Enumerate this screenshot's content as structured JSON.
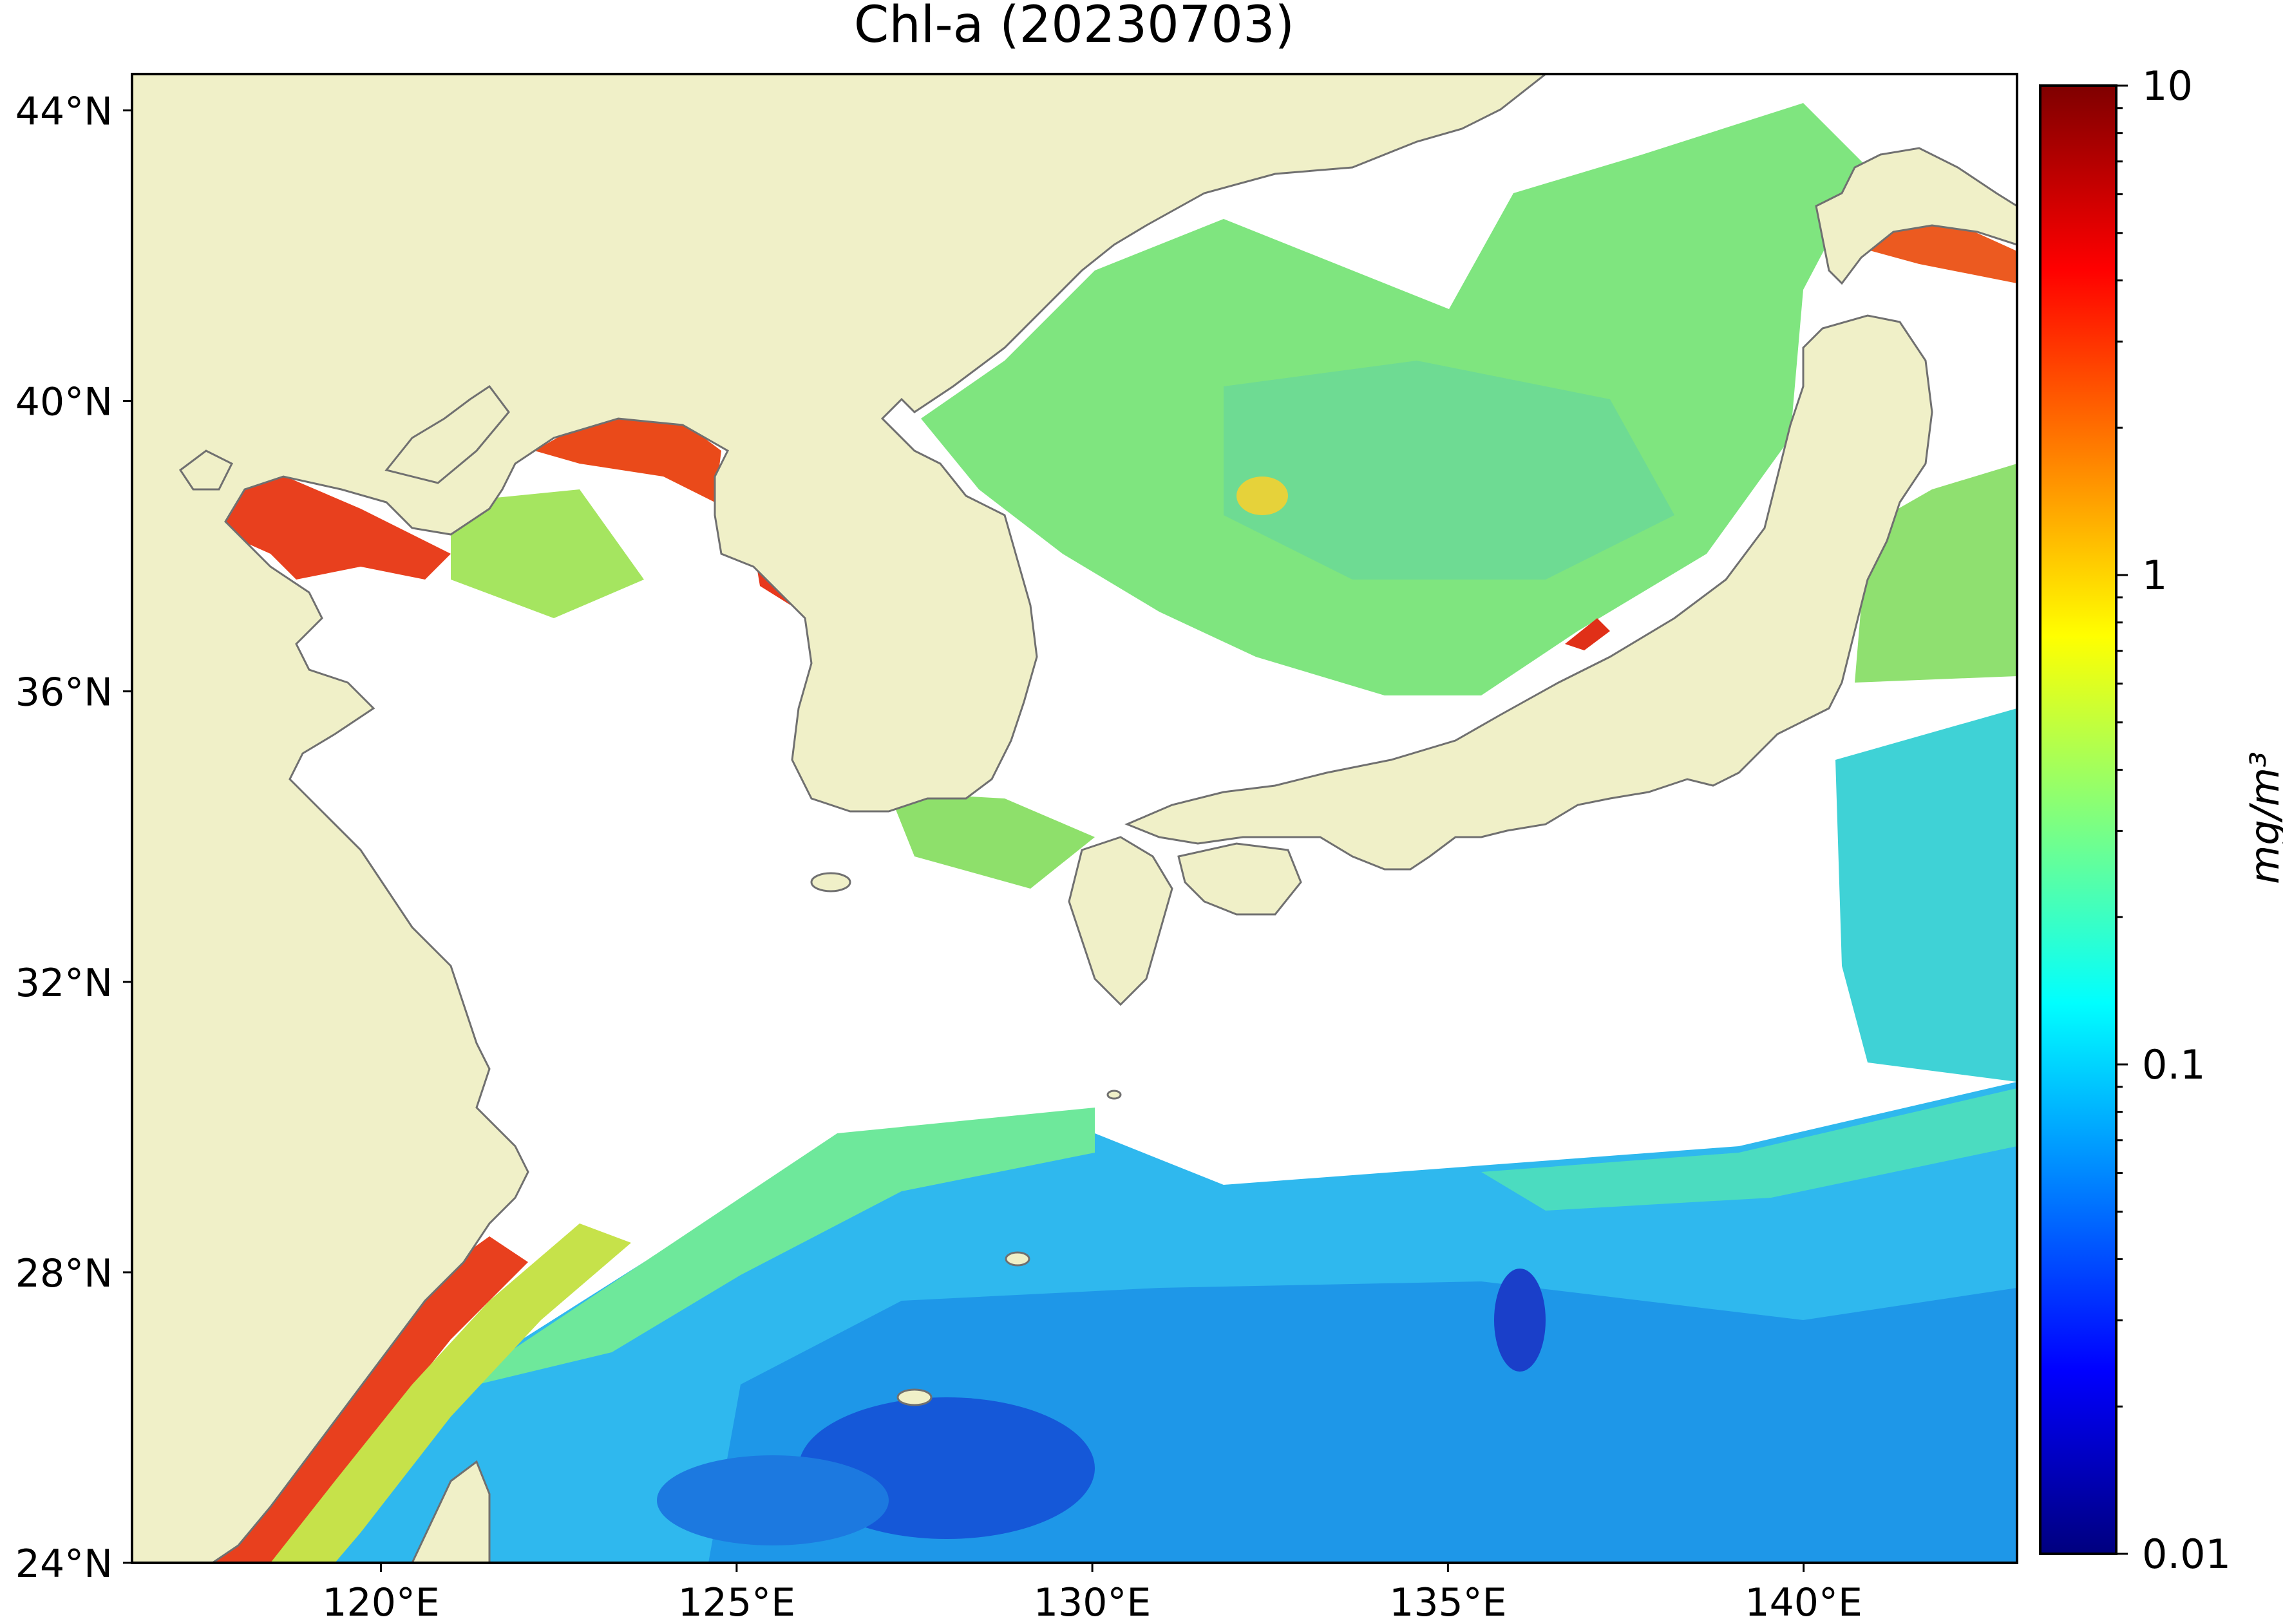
{
  "title": "Chl-a (20230703)",
  "map": {
    "lon_range": [
      116.5,
      143.0
    ],
    "lat_range": [
      24.0,
      44.5
    ],
    "x_ticks": [
      "120°E",
      "125°E",
      "130°E",
      "135°E",
      "140°E"
    ],
    "y_ticks": [
      "44°N",
      "40°N",
      "36°N",
      "32°N",
      "28°N",
      "24°N"
    ],
    "colors": {
      "land": "#f0f0c8",
      "coast": "#707070",
      "no_data": "#ffffff",
      "frame": "#000000"
    },
    "layers": [
      "land",
      "chlorophyll-a",
      "coastline",
      "no-data (cloud)"
    ]
  },
  "colorbar": {
    "label": "mg/m³",
    "scale": "log",
    "range": [
      0.01,
      10
    ],
    "tick_labels": [
      "10",
      "1",
      "0.1",
      "0.01"
    ],
    "colormap": "jet",
    "stops": [
      "#00007f",
      "#0000ff",
      "#007fff",
      "#00ffff",
      "#7fff7f",
      "#ffff00",
      "#ff7f00",
      "#ff0000",
      "#7f0000"
    ]
  }
}
